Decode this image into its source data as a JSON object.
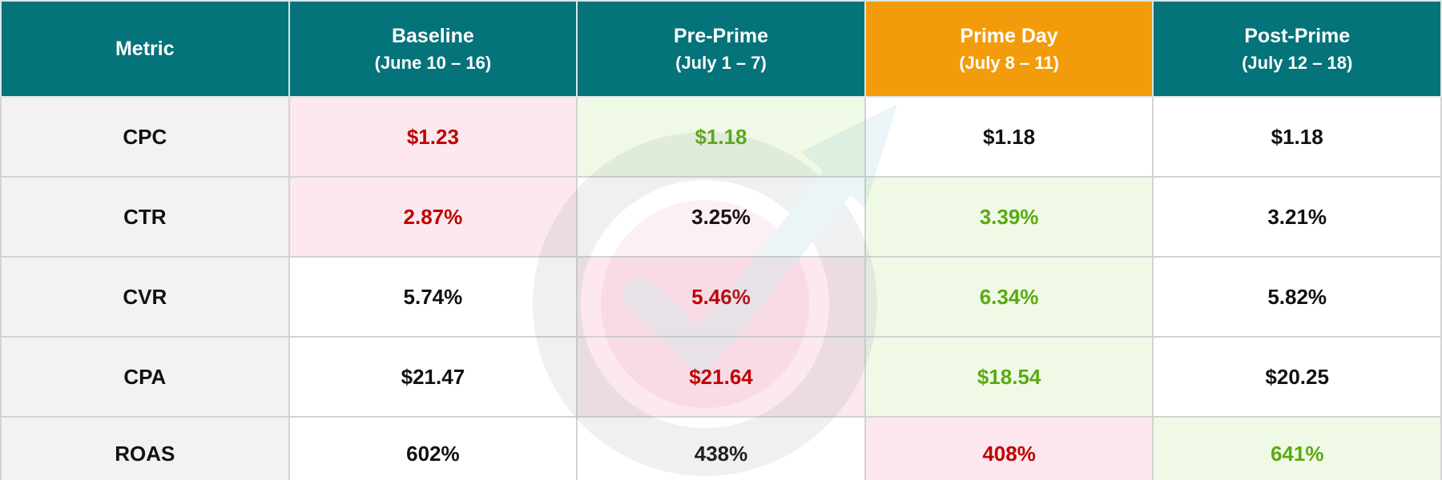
{
  "header": {
    "columns": [
      {
        "title": "Metric",
        "background": "#05737a"
      },
      {
        "title": "Baseline",
        "subtitle": "(June 10 – 16)",
        "background": "#05737a"
      },
      {
        "title": "Pre-Prime",
        "subtitle": "(July 1 – 7)",
        "background": "#05737a"
      },
      {
        "title": "Prime Day",
        "subtitle": "(July 8 – 11)",
        "background": "#f39c0b"
      },
      {
        "title": "Post-Prime",
        "subtitle": "(July 12 – 18)",
        "background": "#05737a"
      }
    ]
  },
  "highlights": {
    "negative": {
      "text": "#c00000",
      "background": "#fce8ee"
    },
    "positive": {
      "text": "#5aaa10",
      "background": "#f0f9e6"
    }
  },
  "table": {
    "rows": [
      {
        "metric": "CPC",
        "cells": [
          {
            "text": "$1.23",
            "highlight": "negative"
          },
          {
            "text": "$1.18",
            "highlight": "positive"
          },
          {
            "text": "$1.18"
          },
          {
            "text": "$1.18"
          }
        ]
      },
      {
        "metric": "CTR",
        "cells": [
          {
            "text": "2.87%",
            "highlight": "negative"
          },
          {
            "text": "3.25%"
          },
          {
            "text": "3.39%",
            "highlight": "positive"
          },
          {
            "text": "3.21%"
          }
        ]
      },
      {
        "metric": "CVR",
        "cells": [
          {
            "text": "5.74%"
          },
          {
            "text": "5.46%",
            "highlight": "negative"
          },
          {
            "text": "6.34%",
            "highlight": "positive"
          },
          {
            "text": "5.82%"
          }
        ]
      },
      {
        "metric": "CPA",
        "cells": [
          {
            "text": "$21.47"
          },
          {
            "text": "$21.64",
            "highlight": "negative"
          },
          {
            "text": "$18.54",
            "highlight": "positive"
          },
          {
            "text": "$20.25"
          }
        ]
      },
      {
        "metric": "ROAS",
        "cells": [
          {
            "text": "602%"
          },
          {
            "text": "438%"
          },
          {
            "text": "408%",
            "highlight": "negative"
          },
          {
            "text": "641%",
            "highlight": "positive"
          }
        ]
      }
    ]
  }
}
